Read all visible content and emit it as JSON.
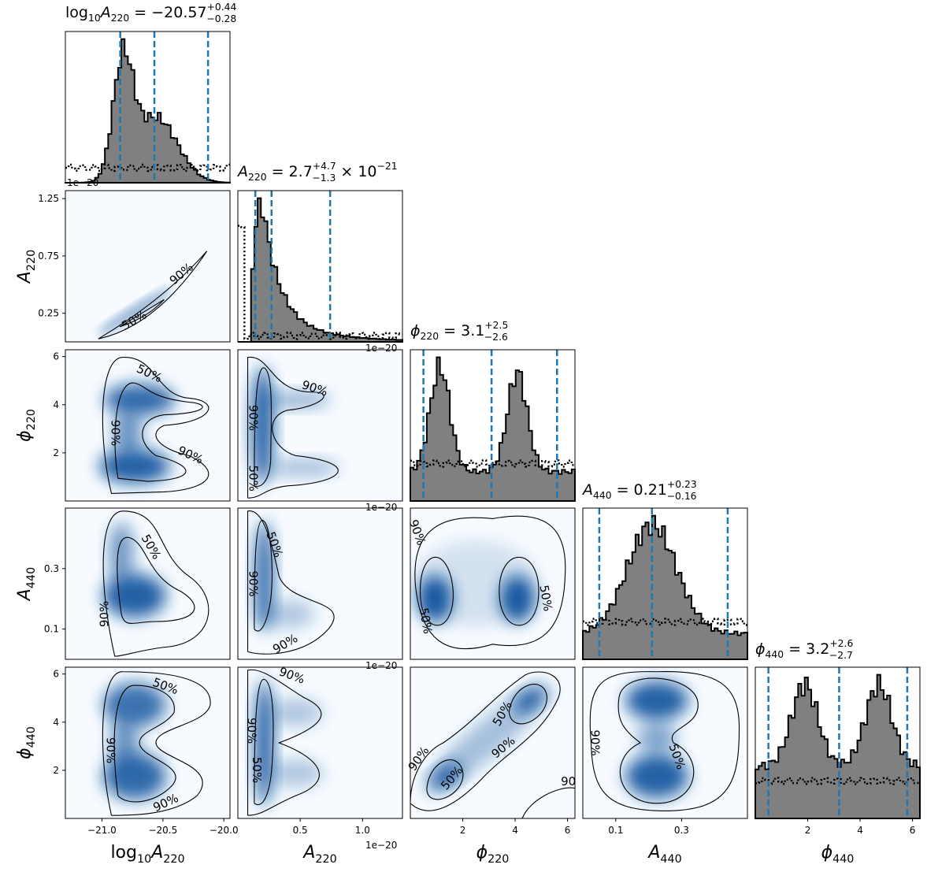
{
  "chart_data": {
    "type": "corner",
    "parameters": [
      {
        "key": "log10A220",
        "label_base": "log",
        "label_sub_base": "10",
        "label_main": "A",
        "label_sub": "220",
        "title": {
          "prefix": "log",
          "prefix_sub": "10",
          "sym": "A",
          "sub": "220",
          "eq": " = −20.57",
          "plus": "+0.44",
          "minus": "−0.28",
          "suffix": ""
        },
        "range": [
          -21.3,
          -19.95
        ],
        "ticks": [
          -21.0,
          -20.5,
          -20.0
        ],
        "tick_labels": [
          "−21.0",
          "−20.5",
          "−20.0"
        ],
        "median": -20.57,
        "q_low": -20.85,
        "q_high": -20.13,
        "offset_text": "1e−20"
      },
      {
        "key": "A220",
        "label_main": "A",
        "label_sub": "220",
        "title": {
          "prefix": "",
          "prefix_sub": "",
          "sym": "A",
          "sub": "220",
          "eq": " = 2.7",
          "plus": "+4.7",
          "minus": "−1.3",
          "suffix": " × 10",
          "suffix_exp": "−21"
        },
        "range": [
          0.0,
          1.32
        ],
        "ticks": [
          0.5,
          1.0
        ],
        "tick_labels": [
          "0.5",
          "1.0"
        ],
        "yticks": [
          0.25,
          0.75,
          1.25
        ],
        "ytick_labels": [
          "0.25",
          "0.75",
          "1.25"
        ],
        "median": 0.27,
        "q_low": 0.14,
        "q_high": 0.74,
        "offset_text": "1e−20"
      },
      {
        "key": "phi220",
        "label_main": "ϕ",
        "label_sub": "220",
        "title": {
          "prefix": "",
          "prefix_sub": "",
          "sym": "ϕ",
          "sub": "220",
          "eq": " = 3.1",
          "plus": "+2.5",
          "minus": "−2.6",
          "suffix": ""
        },
        "range": [
          0.0,
          6.283
        ],
        "ticks": [
          2,
          4,
          6
        ],
        "tick_labels": [
          "2",
          "4",
          "6"
        ],
        "median": 3.1,
        "q_low": 0.5,
        "q_high": 5.6
      },
      {
        "key": "A440",
        "label_main": "A",
        "label_sub": "440",
        "title": {
          "prefix": "",
          "prefix_sub": "",
          "sym": "A",
          "sub": "440",
          "eq": " = 0.21",
          "plus": "+0.23",
          "minus": "−0.16",
          "suffix": ""
        },
        "range": [
          0.0,
          0.5
        ],
        "ticks": [
          0.1,
          0.3
        ],
        "tick_labels": [
          "0.1",
          "0.3"
        ],
        "median": 0.21,
        "q_low": 0.05,
        "q_high": 0.44
      },
      {
        "key": "phi440",
        "label_main": "ϕ",
        "label_sub": "440",
        "title": {
          "prefix": "",
          "prefix_sub": "",
          "sym": "ϕ",
          "sub": "440",
          "eq": " = 3.2",
          "plus": "+2.6",
          "minus": "−2.7",
          "suffix": ""
        },
        "range": [
          0.0,
          6.283
        ],
        "ticks": [
          2,
          4,
          6
        ],
        "tick_labels": [
          "2",
          "4",
          "6"
        ],
        "median": 3.2,
        "q_low": 0.5,
        "q_high": 5.8
      }
    ],
    "contour_levels": [
      "50%",
      "90%"
    ],
    "colormap": "Blues",
    "histogram_fill": "#808080",
    "quantile_line_color": "#1f77b4",
    "prior_line_style": "dotted"
  }
}
